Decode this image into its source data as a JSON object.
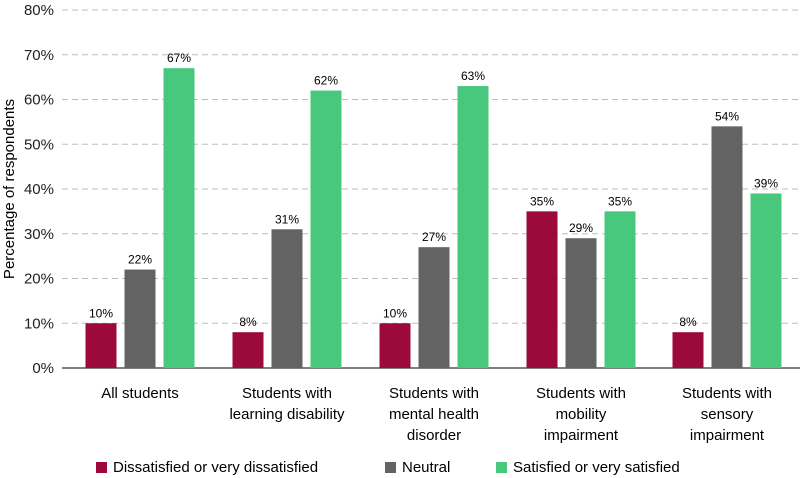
{
  "chart_data": {
    "type": "bar",
    "ylabel": "Percentage of respondents",
    "xlabel": "",
    "ylim": [
      0,
      80
    ],
    "y_ticks": [
      "0%",
      "10%",
      "20%",
      "30%",
      "40%",
      "50%",
      "60%",
      "70%",
      "80%"
    ],
    "grid": true,
    "legend_position": "bottom",
    "categories": [
      [
        "All students"
      ],
      [
        "Students with",
        "learning disability"
      ],
      [
        "Students with",
        "mental health",
        "disorder"
      ],
      [
        "Students with",
        "mobility",
        "impairment"
      ],
      [
        "Students with",
        "sensory",
        "impairment"
      ]
    ],
    "series": [
      {
        "name": "Dissatisfied or very dissatisfied",
        "color": "#9b0a3a",
        "values": [
          10,
          8,
          10,
          35,
          8
        ],
        "labels": [
          "10%",
          "8%",
          "10%",
          "35%",
          "8%"
        ]
      },
      {
        "name": "Neutral",
        "color": "#636363",
        "values": [
          22,
          31,
          27,
          29,
          54
        ],
        "labels": [
          "22%",
          "31%",
          "27%",
          "29%",
          "54%"
        ]
      },
      {
        "name": "Satisfied or very satisfied",
        "color": "#47c87c",
        "values": [
          67,
          62,
          63,
          35,
          39
        ],
        "labels": [
          "67%",
          "62%",
          "63%",
          "35%",
          "39%"
        ]
      }
    ]
  }
}
